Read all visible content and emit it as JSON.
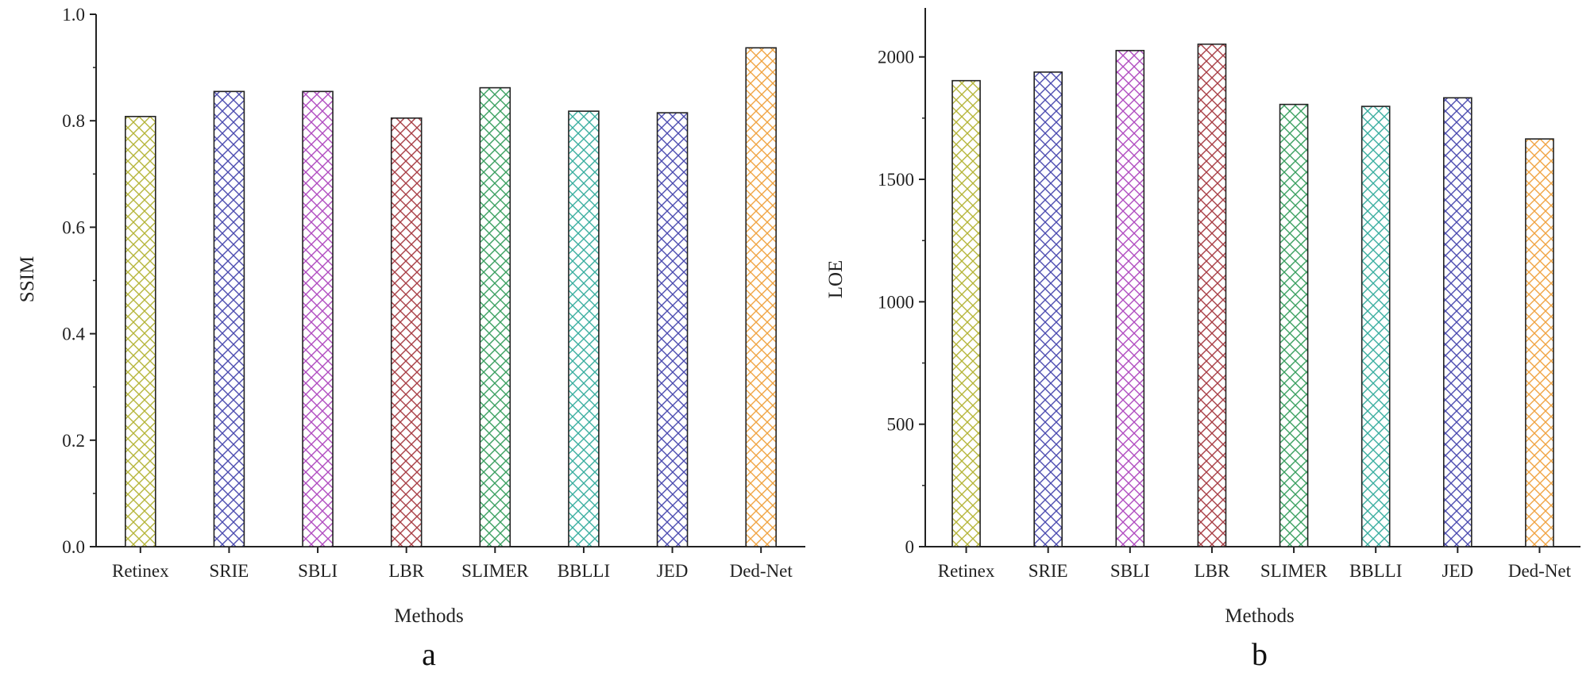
{
  "chart_data": [
    {
      "type": "bar",
      "panel_label": "a",
      "xlabel": "Methods",
      "ylabel": "SSIM",
      "ylim": [
        0,
        1.0
      ],
      "yticks": [
        "0.0",
        "0.2",
        "0.4",
        "0.6",
        "0.8",
        "1.0"
      ],
      "categories": [
        "Retinex",
        "SRIE",
        "SBLI",
        "LBR",
        "SLIMER",
        "BBLLI",
        "JED",
        "Ded-Net"
      ],
      "values": [
        0.808,
        0.855,
        0.855,
        0.805,
        0.862,
        0.818,
        0.815,
        0.937
      ],
      "colors": [
        "#b5b53a",
        "#4c4cb0",
        "#b04cc0",
        "#a83e45",
        "#3aa060",
        "#3aaea0",
        "#4c4cb0",
        "#f0a442"
      ],
      "grid": false,
      "fill_pattern": "crosshatch"
    },
    {
      "type": "bar",
      "panel_label": "b",
      "xlabel": "Methods",
      "ylabel": "LOE",
      "ylim": [
        0,
        2200
      ],
      "yticks": [
        "0",
        "500",
        "1000",
        "1500",
        "2000"
      ],
      "categories": [
        "Retinex",
        "SRIE",
        "SBLI",
        "LBR",
        "SLIMER",
        "BBLLI",
        "JED",
        "Ded-Net"
      ],
      "values": [
        1903,
        1938,
        2026,
        2052,
        1806,
        1798,
        1833,
        1665
      ],
      "colors": [
        "#b5b53a",
        "#4c4cb0",
        "#b04cc0",
        "#a83e45",
        "#3aa060",
        "#3aaea0",
        "#4c4cb0",
        "#f0a442"
      ],
      "grid": false,
      "fill_pattern": "crosshatch"
    }
  ]
}
